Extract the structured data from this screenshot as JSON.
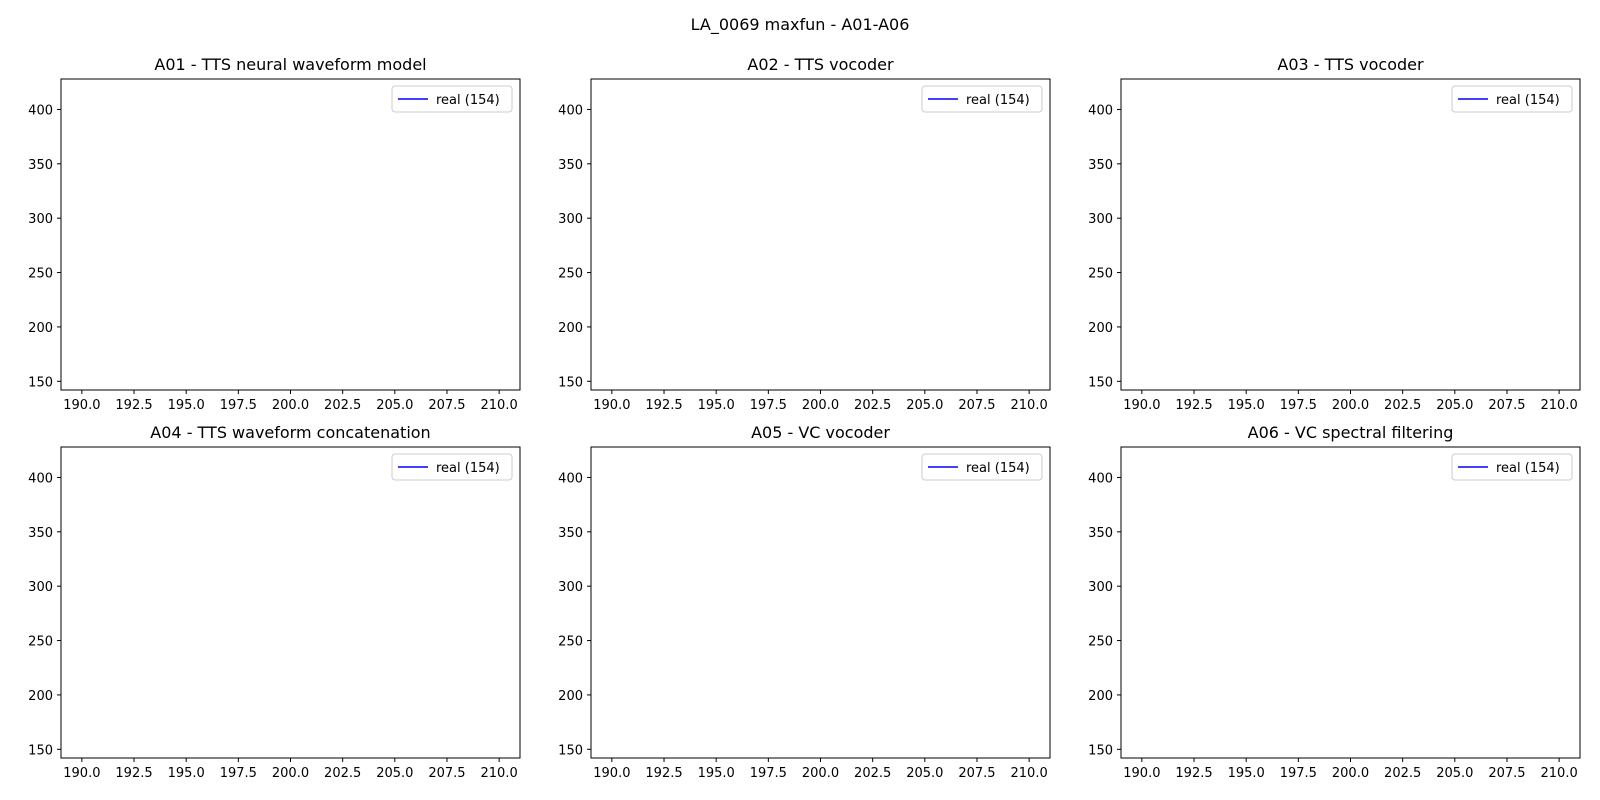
{
  "figure": {
    "suptitle": "LA_0069 maxfun - A01-A06"
  },
  "chart_data": [
    {
      "type": "line",
      "title": "A01 - TTS neural waveform model",
      "xlim": [
        189.0,
        211.0
      ],
      "ylim": [
        142,
        428
      ],
      "xticks": [
        "190.0",
        "192.5",
        "195.0",
        "197.5",
        "200.0",
        "202.5",
        "205.0",
        "207.5",
        "210.0"
      ],
      "yticks": [
        "150",
        "200",
        "250",
        "300",
        "350",
        "400"
      ],
      "legend_position": "upper-right",
      "series": [
        {
          "name": "real (154)",
          "color": "#0000ff",
          "x": [],
          "y": []
        }
      ]
    },
    {
      "type": "line",
      "title": "A02 - TTS vocoder",
      "xlim": [
        189.0,
        211.0
      ],
      "ylim": [
        142,
        428
      ],
      "xticks": [
        "190.0",
        "192.5",
        "195.0",
        "197.5",
        "200.0",
        "202.5",
        "205.0",
        "207.5",
        "210.0"
      ],
      "yticks": [
        "150",
        "200",
        "250",
        "300",
        "350",
        "400"
      ],
      "legend_position": "upper-right",
      "series": [
        {
          "name": "real (154)",
          "color": "#0000ff",
          "x": [],
          "y": []
        }
      ]
    },
    {
      "type": "line",
      "title": "A03 - TTS vocoder",
      "xlim": [
        189.0,
        211.0
      ],
      "ylim": [
        142,
        428
      ],
      "xticks": [
        "190.0",
        "192.5",
        "195.0",
        "197.5",
        "200.0",
        "202.5",
        "205.0",
        "207.5",
        "210.0"
      ],
      "yticks": [
        "150",
        "200",
        "250",
        "300",
        "350",
        "400"
      ],
      "legend_position": "upper-right",
      "series": [
        {
          "name": "real (154)",
          "color": "#0000ff",
          "x": [],
          "y": []
        }
      ]
    },
    {
      "type": "line",
      "title": "A04 - TTS waveform concatenation",
      "xlim": [
        189.0,
        211.0
      ],
      "ylim": [
        142,
        428
      ],
      "xticks": [
        "190.0",
        "192.5",
        "195.0",
        "197.5",
        "200.0",
        "202.5",
        "205.0",
        "207.5",
        "210.0"
      ],
      "yticks": [
        "150",
        "200",
        "250",
        "300",
        "350",
        "400"
      ],
      "legend_position": "upper-right",
      "series": [
        {
          "name": "real (154)",
          "color": "#0000ff",
          "x": [],
          "y": []
        }
      ]
    },
    {
      "type": "line",
      "title": "A05 - VC vocoder",
      "xlim": [
        189.0,
        211.0
      ],
      "ylim": [
        142,
        428
      ],
      "xticks": [
        "190.0",
        "192.5",
        "195.0",
        "197.5",
        "200.0",
        "202.5",
        "205.0",
        "207.5",
        "210.0"
      ],
      "yticks": [
        "150",
        "200",
        "250",
        "300",
        "350",
        "400"
      ],
      "legend_position": "upper-right",
      "series": [
        {
          "name": "real (154)",
          "color": "#0000ff",
          "x": [],
          "y": []
        }
      ]
    },
    {
      "type": "line",
      "title": "A06 - VC spectral filtering",
      "xlim": [
        189.0,
        211.0
      ],
      "ylim": [
        142,
        428
      ],
      "xticks": [
        "190.0",
        "192.5",
        "195.0",
        "197.5",
        "200.0",
        "202.5",
        "205.0",
        "207.5",
        "210.0"
      ],
      "yticks": [
        "150",
        "200",
        "250",
        "300",
        "350",
        "400"
      ],
      "legend_position": "upper-right",
      "series": [
        {
          "name": "real (154)",
          "color": "#0000ff",
          "x": [],
          "y": []
        }
      ]
    }
  ]
}
